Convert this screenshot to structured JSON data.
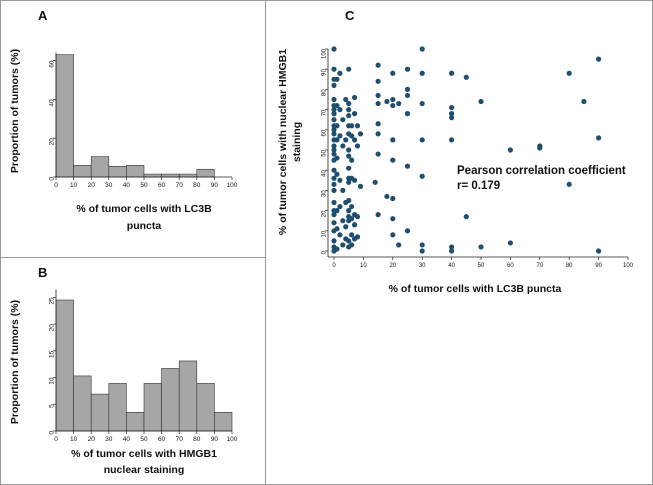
{
  "chart_data": [
    {
      "panel": "A",
      "type": "bar",
      "ylabel": "Proportion of tumors (%)",
      "xlabel": "% of tumor cells with LC3B puncta",
      "x_ticks": [
        0,
        10,
        20,
        30,
        40,
        50,
        60,
        70,
        80,
        90,
        100
      ],
      "y_ticks": [
        0,
        20,
        40,
        60
      ],
      "xlim": [
        0,
        100
      ],
      "ylim": [
        0,
        68
      ],
      "bins": [
        [
          0,
          10
        ],
        [
          10,
          20
        ],
        [
          20,
          30
        ],
        [
          30,
          40
        ],
        [
          40,
          50
        ],
        [
          50,
          60
        ],
        [
          60,
          70
        ],
        [
          70,
          80
        ],
        [
          80,
          90
        ]
      ],
      "values": [
        63,
        6,
        10.5,
        5.5,
        6,
        1.5,
        1.5,
        1.5,
        4
      ],
      "bar_color": "#a6a6a6"
    },
    {
      "panel": "B",
      "type": "bar",
      "ylabel": "Proportion of tumors (%)",
      "xlabel": "% of tumor cells with HMGB1 nuclear staining",
      "x_ticks": [
        0,
        10,
        20,
        30,
        40,
        50,
        60,
        70,
        80,
        90,
        100
      ],
      "y_ticks": [
        0,
        5,
        10,
        15,
        20,
        25
      ],
      "xlim": [
        0,
        100
      ],
      "ylim": [
        0,
        26
      ],
      "bins": [
        [
          0,
          10
        ],
        [
          10,
          20
        ],
        [
          20,
          30
        ],
        [
          30,
          40
        ],
        [
          40,
          50
        ],
        [
          50,
          60
        ],
        [
          60,
          70
        ],
        [
          70,
          80
        ],
        [
          80,
          90
        ],
        [
          90,
          100
        ]
      ],
      "values": [
        24.5,
        10.3,
        6.9,
        8.9,
        3.5,
        8.9,
        11.7,
        13.1,
        8.9,
        3.5
      ],
      "bar_color": "#a6a6a6"
    },
    {
      "panel": "C",
      "type": "scatter",
      "ylabel": "% of tumor cells with nuclear HMGB1 staining",
      "xlabel": "% of tumor cells with LC3B puncta",
      "x_ticks": [
        0,
        10,
        20,
        30,
        40,
        50,
        60,
        70,
        80,
        90,
        100
      ],
      "y_ticks": [
        0,
        10,
        20,
        30,
        40,
        50,
        60,
        70,
        80,
        90,
        100
      ],
      "xlim": [
        0,
        100
      ],
      "ylim": [
        0,
        100
      ],
      "annotation": [
        "Pearson correlation coefficient",
        "r= 0.179"
      ],
      "point_color": "#1f4e6e",
      "points": [
        [
          0,
          100
        ],
        [
          0,
          90
        ],
        [
          0,
          85
        ],
        [
          0,
          82
        ],
        [
          0,
          75
        ],
        [
          0,
          72
        ],
        [
          0,
          70
        ],
        [
          0,
          68
        ],
        [
          0,
          65
        ],
        [
          0,
          62
        ],
        [
          0,
          60
        ],
        [
          0,
          58
        ],
        [
          0,
          55
        ],
        [
          0,
          52
        ],
        [
          0,
          50
        ],
        [
          0,
          48
        ],
        [
          0,
          45
        ],
        [
          0,
          40
        ],
        [
          0,
          36
        ],
        [
          0,
          33
        ],
        [
          0,
          30
        ],
        [
          0,
          24
        ],
        [
          0,
          20
        ],
        [
          0,
          18
        ],
        [
          0,
          14
        ],
        [
          0,
          10
        ],
        [
          0,
          5
        ],
        [
          0,
          2
        ],
        [
          0,
          0
        ],
        [
          1,
          85
        ],
        [
          1,
          72
        ],
        [
          1,
          62
        ],
        [
          1,
          55
        ],
        [
          1,
          46
        ],
        [
          1,
          38
        ],
        [
          1,
          20
        ],
        [
          1,
          11
        ],
        [
          1,
          1
        ],
        [
          2,
          88
        ],
        [
          2,
          70
        ],
        [
          2,
          57
        ],
        [
          2,
          35
        ],
        [
          2,
          22
        ],
        [
          2,
          8
        ],
        [
          3,
          65
        ],
        [
          3,
          52
        ],
        [
          3,
          30
        ],
        [
          3,
          15
        ],
        [
          3,
          3
        ],
        [
          4,
          75
        ],
        [
          4,
          55
        ],
        [
          4,
          24
        ],
        [
          4,
          12
        ],
        [
          4,
          6
        ],
        [
          5,
          90
        ],
        [
          5,
          73
        ],
        [
          5,
          70
        ],
        [
          5,
          67
        ],
        [
          5,
          62
        ],
        [
          5,
          58
        ],
        [
          5,
          50
        ],
        [
          5,
          47
        ],
        [
          5,
          41
        ],
        [
          5,
          36
        ],
        [
          5,
          34
        ],
        [
          5,
          25
        ],
        [
          5,
          20
        ],
        [
          5,
          17
        ],
        [
          5,
          15
        ],
        [
          5,
          5
        ],
        [
          5,
          2
        ],
        [
          6,
          62
        ],
        [
          6,
          57
        ],
        [
          6,
          45
        ],
        [
          6,
          36
        ],
        [
          6,
          22
        ],
        [
          6,
          16
        ],
        [
          6,
          8
        ],
        [
          6,
          3
        ],
        [
          7,
          76
        ],
        [
          7,
          68
        ],
        [
          7,
          55
        ],
        [
          7,
          35
        ],
        [
          7,
          18
        ],
        [
          7,
          13
        ],
        [
          7,
          6
        ],
        [
          8,
          62
        ],
        [
          8,
          52
        ],
        [
          8,
          17
        ],
        [
          8,
          7
        ],
        [
          9,
          58
        ],
        [
          9,
          32
        ],
        [
          14,
          34
        ],
        [
          15,
          92
        ],
        [
          15,
          84
        ],
        [
          15,
          77
        ],
        [
          15,
          73
        ],
        [
          15,
          63
        ],
        [
          15,
          58
        ],
        [
          15,
          48
        ],
        [
          15,
          18
        ],
        [
          18,
          74
        ],
        [
          18,
          27
        ],
        [
          20,
          88
        ],
        [
          20,
          75
        ],
        [
          20,
          72
        ],
        [
          20,
          55
        ],
        [
          20,
          45
        ],
        [
          20,
          26
        ],
        [
          20,
          16
        ],
        [
          20,
          8
        ],
        [
          22,
          73
        ],
        [
          22,
          3
        ],
        [
          25,
          90
        ],
        [
          25,
          80
        ],
        [
          25,
          77
        ],
        [
          25,
          68
        ],
        [
          25,
          42
        ],
        [
          25,
          10
        ],
        [
          30,
          100
        ],
        [
          30,
          88
        ],
        [
          30,
          73
        ],
        [
          30,
          55
        ],
        [
          30,
          37
        ],
        [
          30,
          3
        ],
        [
          30,
          0
        ],
        [
          40,
          88
        ],
        [
          40,
          71
        ],
        [
          40,
          68
        ],
        [
          40,
          66
        ],
        [
          40,
          55
        ],
        [
          40,
          2
        ],
        [
          40,
          0
        ],
        [
          45,
          86
        ],
        [
          45,
          17
        ],
        [
          50,
          74
        ],
        [
          50,
          2
        ],
        [
          60,
          50
        ],
        [
          60,
          4
        ],
        [
          70,
          52
        ],
        [
          70,
          51
        ],
        [
          80,
          88
        ],
        [
          80,
          33
        ],
        [
          85,
          74
        ],
        [
          90,
          95
        ],
        [
          90,
          56
        ],
        [
          90,
          0
        ]
      ]
    }
  ]
}
